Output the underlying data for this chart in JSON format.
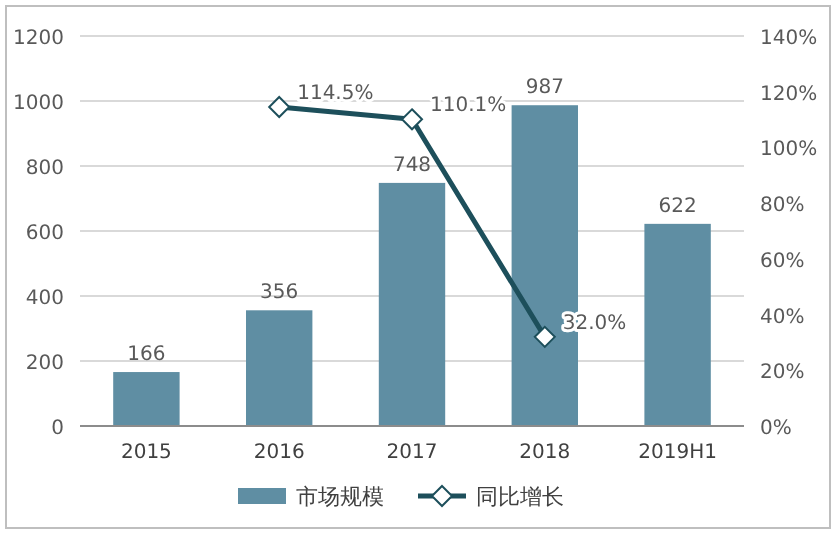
{
  "chart_data": {
    "type": "bar",
    "categories": [
      "2015",
      "2016",
      "2017",
      "2018",
      "2019H1"
    ],
    "series": [
      {
        "name": "市场规模",
        "color": "#5f8ea3",
        "values": [
          166,
          356,
          748,
          987,
          622
        ],
        "value_labels": [
          "166",
          "356",
          "748",
          "987",
          "622"
        ]
      },
      {
        "name": "同比增长",
        "type": "line",
        "axis": "y2",
        "color": "#1d4f5b",
        "marker": "diamond",
        "values": [
          null,
          114.5,
          110.1,
          32.0,
          null
        ],
        "value_labels": [
          null,
          "114.5%",
          "110.1%",
          "32.0%",
          null
        ]
      }
    ],
    "ylim": [
      0,
      1200
    ],
    "yticks": [
      0,
      200,
      400,
      600,
      800,
      1000,
      1200
    ],
    "y2lim": [
      0,
      140
    ],
    "y2ticks": [
      {
        "value": 0,
        "label": "0%"
      },
      {
        "value": 20,
        "label": "20%"
      },
      {
        "value": 40,
        "label": "40%"
      },
      {
        "value": 60,
        "label": "60%"
      },
      {
        "value": 80,
        "label": "80%"
      },
      {
        "value": 100,
        "label": "100%"
      },
      {
        "value": 120,
        "label": "120%"
      },
      {
        "value": 140,
        "label": "140%"
      }
    ],
    "grid": "y",
    "legend": "bottom"
  }
}
